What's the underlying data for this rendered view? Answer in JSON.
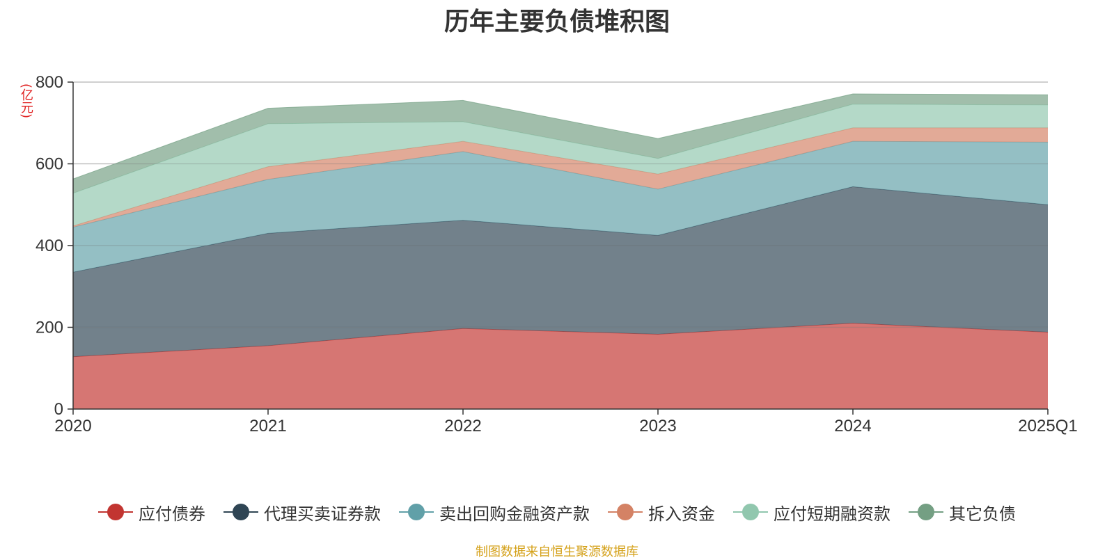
{
  "title": "历年主要负债堆积图",
  "unit": "(亿元)",
  "source": "制图数据来自恒生聚源数据库",
  "chart_data": {
    "type": "area",
    "stacked": true,
    "categories": [
      "2020",
      "2021",
      "2022",
      "2023",
      "2024",
      "2025Q1"
    ],
    "ylim": [
      0,
      800
    ],
    "yticks": [
      0,
      200,
      400,
      600,
      800
    ],
    "grid": true,
    "legend_position": "bottom",
    "series": [
      {
        "name": "应付债券",
        "color": "#c23531",
        "values": [
          128,
          155,
          197,
          183,
          210,
          188
        ]
      },
      {
        "name": "代理买卖证券款",
        "color": "#2f4554",
        "values": [
          207,
          275,
          265,
          242,
          334,
          312
        ]
      },
      {
        "name": "卖出回购金融资产款",
        "color": "#61a0a8",
        "values": [
          110,
          132,
          168,
          113,
          111,
          153
        ]
      },
      {
        "name": "拆入资金",
        "color": "#d48265",
        "values": [
          3,
          31,
          25,
          37,
          33,
          35
        ]
      },
      {
        "name": "应付短期融资款",
        "color": "#91c7ae",
        "values": [
          80,
          105,
          48,
          38,
          58,
          56
        ]
      },
      {
        "name": "其它负债",
        "color": "#749f83",
        "values": [
          35,
          38,
          52,
          49,
          25,
          25
        ]
      }
    ]
  }
}
